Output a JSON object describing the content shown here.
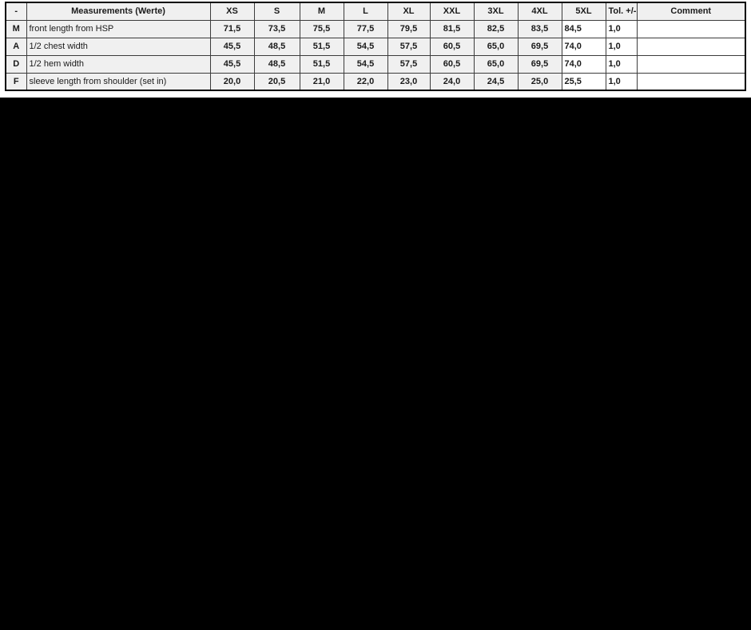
{
  "colors": {
    "page_background": "#000000",
    "document_background": "#ffffff",
    "cell_gray": "#f0f0f0",
    "cell_white": "#ffffff",
    "grid_line": "#3c3c3c",
    "thick_line": "#000000"
  },
  "table": {
    "headers": [
      "-",
      "Measurements (Werte)",
      "XS",
      "S",
      "M",
      "L",
      "XL",
      "XXL",
      "3XL",
      "4XL",
      "5XL",
      "Tol. +/-",
      "Comment"
    ],
    "base_size_column": "M",
    "rows": [
      {
        "code": "M",
        "name": "front length from HSP",
        "values": [
          "71,5",
          "73,5",
          "75,5",
          "77,5",
          "79,5",
          "81,5",
          "82,5",
          "83,5",
          "84,5"
        ],
        "tol": "1,0",
        "comment": ""
      },
      {
        "code": "A",
        "name": "1/2 chest width",
        "values": [
          "45,5",
          "48,5",
          "51,5",
          "54,5",
          "57,5",
          "60,5",
          "65,0",
          "69,5",
          "74,0"
        ],
        "tol": "1,0",
        "comment": ""
      },
      {
        "code": "D",
        "name": "1/2 hem width",
        "values": [
          "45,5",
          "48,5",
          "51,5",
          "54,5",
          "57,5",
          "60,5",
          "65,0",
          "69,5",
          "74,0"
        ],
        "tol": "1,0",
        "comment": ""
      },
      {
        "code": "F",
        "name": "sleeve length from shoulder (set in)",
        "values": [
          "20,0",
          "20,5",
          "21,0",
          "22,0",
          "23,0",
          "24,0",
          "24,5",
          "25,0",
          "25,5"
        ],
        "tol": "1,0",
        "comment": ""
      }
    ]
  }
}
